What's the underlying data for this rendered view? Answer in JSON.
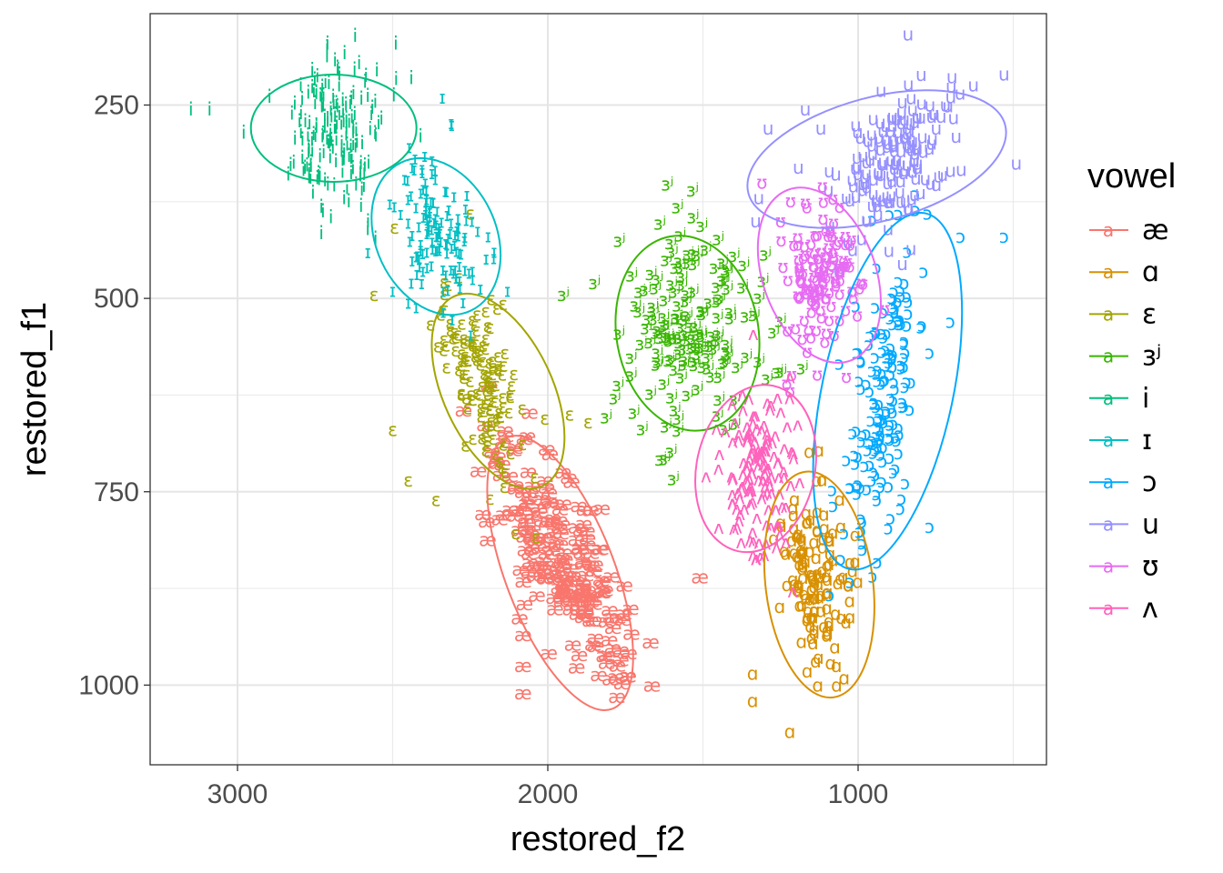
{
  "chart_data": {
    "type": "scatter",
    "xlabel": "restored_f2",
    "ylabel": "restored_f1",
    "x_reversed": true,
    "y_reversed": true,
    "xlim": [
      3300,
      450
    ],
    "ylim": [
      1110,
      130
    ],
    "x_ticks": [
      3000,
      2000,
      1000
    ],
    "y_ticks": [
      250,
      500,
      750,
      1000
    ],
    "grid": true,
    "legend": {
      "title": "vowel",
      "position": "right",
      "key_glyph": "a"
    },
    "series": [
      {
        "name": "æ",
        "color": "#F8766D",
        "center": [
          1950,
          835
        ],
        "sd": [
          110,
          75
        ],
        "rho": -0.75,
        "n": 220,
        "ellipse": {
          "cx": 1960,
          "cy": 855,
          "rx": 160,
          "ry": 60,
          "angle_deg": 69
        },
        "outliers": [
          [
            1510,
            860
          ],
          [
            2080,
            935
          ],
          [
            2080,
            975
          ],
          [
            2080,
            1010
          ]
        ]
      },
      {
        "name": "ɑ",
        "color": "#D89000",
        "center": [
          1130,
          860
        ],
        "sd": [
          55,
          60
        ],
        "rho": -0.3,
        "n": 130,
        "ellipse": {
          "cx": 1125,
          "cy": 870,
          "rx": 125,
          "ry": 59,
          "angle_deg": 83
        },
        "outliers": [
          [
            1340,
            985
          ],
          [
            1340,
            1020
          ],
          [
            1220,
            1060
          ],
          [
            1130,
            1000
          ],
          [
            1010,
            840
          ],
          [
            1070,
            975
          ]
        ]
      },
      {
        "name": "ɛ",
        "color": "#A3A500",
        "center": [
          2210,
          610
        ],
        "sd": [
          70,
          65
        ],
        "rho": -0.6,
        "n": 140,
        "ellipse": {
          "cx": 2160,
          "cy": 620,
          "rx": 115,
          "ry": 60,
          "angle_deg": 65
        },
        "outliers": [
          [
            2560,
            495
          ],
          [
            2500,
            670
          ],
          [
            2450,
            735
          ],
          [
            2360,
            760
          ],
          [
            1930,
            650
          ],
          [
            1870,
            660
          ],
          [
            2010,
            655
          ],
          [
            2120,
            700
          ],
          [
            2250,
            390
          ]
        ]
      },
      {
        "name": "ɜʲ",
        "color": "#39B600",
        "center": [
          1540,
          535
        ],
        "sd": [
          110,
          70
        ],
        "rho": 0.1,
        "n": 160,
        "ellipse": {
          "cx": 1550,
          "cy": 545,
          "rx": 108,
          "ry": 78,
          "angle_deg": 80
        },
        "outliers": [
          [
            1950,
            495
          ],
          [
            1850,
            480
          ],
          [
            1770,
            425
          ],
          [
            1580,
            655
          ],
          [
            1260,
            595
          ],
          [
            1180,
            590
          ],
          [
            1360,
            575
          ],
          [
            1730,
            470
          ]
        ]
      },
      {
        "name": "i",
        "color": "#00BF7D",
        "center": [
          2680,
          280
        ],
        "sd": [
          75,
          50
        ],
        "rho": 0.0,
        "n": 170,
        "ellipse": {
          "cx": 2690,
          "cy": 280,
          "rx": 59,
          "ry": 91,
          "angle_deg": 90
        },
        "outliers": [
          [
            3150,
            255
          ],
          [
            3090,
            255
          ],
          [
            2490,
            170
          ],
          [
            2440,
            215
          ],
          [
            2580,
            410
          ],
          [
            2730,
            415
          ],
          [
            2980,
            285
          ],
          [
            2410,
            290
          ]
        ]
      },
      {
        "name": "ɪ",
        "color": "#00BFC4",
        "center": [
          2360,
          410
        ],
        "sd": [
          60,
          50
        ],
        "rho": -0.3,
        "n": 130,
        "ellipse": {
          "cx": 2360,
          "cy": 420,
          "rx": 90,
          "ry": 66,
          "angle_deg": 65
        },
        "outliers": [
          [
            2130,
            490
          ],
          [
            2450,
            505
          ],
          [
            2310,
            275
          ],
          [
            2340,
            240
          ],
          [
            2500,
            490
          ],
          [
            2580,
            440
          ]
        ]
      },
      {
        "name": "ɔ",
        "color": "#00A9FF",
        "center": [
          920,
          620
        ],
        "sd": [
          60,
          95
        ],
        "rho": 0.5,
        "n": 180,
        "ellipse": {
          "cx": 905,
          "cy": 620,
          "rx": 200,
          "ry": 72,
          "angle_deg": 102
        },
        "outliers": [
          [
            670,
            420
          ],
          [
            530,
            420
          ],
          [
            770,
            795
          ],
          [
            990,
            800
          ],
          [
            870,
            700
          ],
          [
            770,
            570
          ],
          [
            940,
            760
          ]
        ]
      },
      {
        "name": "u",
        "color": "#9590FF",
        "center": [
          880,
          320
        ],
        "sd": [
          90,
          50
        ],
        "rho": 0.4,
        "n": 170,
        "ellipse": {
          "cx": 940,
          "cy": 320,
          "rx": 68,
          "ry": 146,
          "angle_deg": 75
        },
        "outliers": [
          [
            530,
            210
          ],
          [
            490,
            325
          ],
          [
            1290,
            280
          ],
          [
            1120,
            280
          ],
          [
            1170,
            255
          ],
          [
            1320,
            370
          ],
          [
            1330,
            400
          ]
        ]
      },
      {
        "name": "ʊ",
        "color": "#E76BF3",
        "center": [
          1110,
          470
        ],
        "sd": [
          65,
          45
        ],
        "rho": 0.0,
        "n": 130,
        "ellipse": {
          "cx": 1125,
          "cy": 470,
          "rx": 100,
          "ry": 62,
          "angle_deg": 70
        },
        "outliers": [
          [
            1230,
            610
          ],
          [
            1250,
            400
          ],
          [
            1310,
            350
          ],
          [
            1220,
            620
          ],
          [
            1160,
            540
          ]
        ]
      },
      {
        "name": "ʌ",
        "color": "#FF62BC",
        "center": [
          1320,
          720
        ],
        "sd": [
          60,
          60
        ],
        "rho": 0.0,
        "n": 140,
        "ellipse": {
          "cx": 1330,
          "cy": 720,
          "rx": 65,
          "ry": 93,
          "angle_deg": 12
        },
        "outliers": [
          [
            1490,
            730
          ],
          [
            1450,
            720
          ],
          [
            1210,
            700
          ]
        ]
      }
    ]
  }
}
